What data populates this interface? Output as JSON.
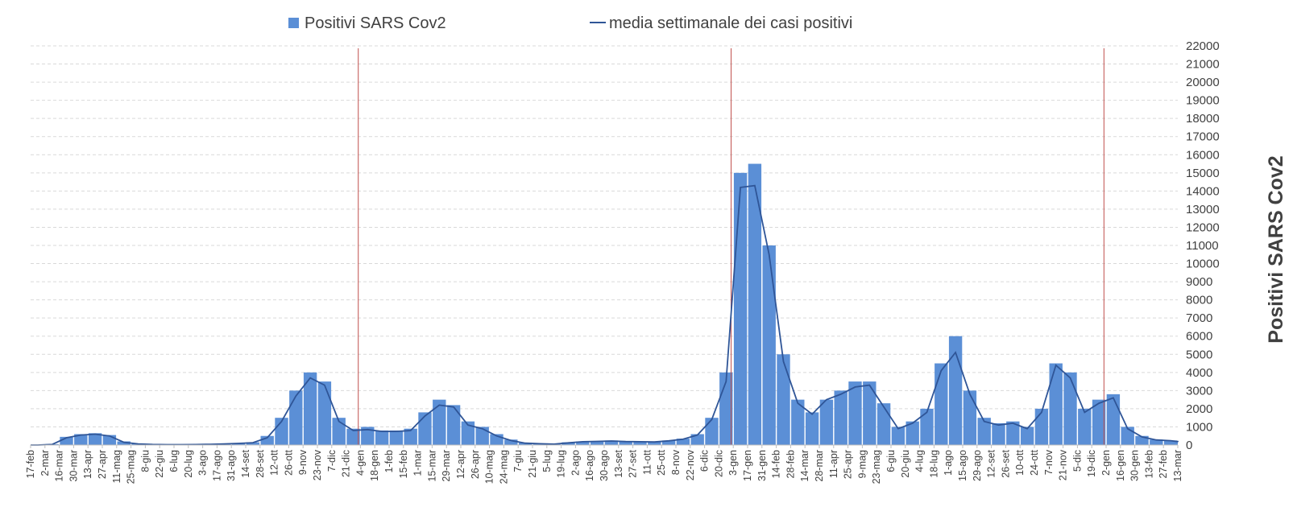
{
  "chart_data": {
    "type": "bar",
    "title": "",
    "xlabel": "",
    "ylabel": "Positivi SARS Cov2",
    "ylim": [
      0,
      22000
    ],
    "y_ticks": [
      0,
      1000,
      2000,
      3000,
      4000,
      5000,
      6000,
      7000,
      8000,
      9000,
      10000,
      11000,
      12000,
      13000,
      14000,
      15000,
      16000,
      17000,
      18000,
      19000,
      20000,
      21000,
      22000
    ],
    "grid": true,
    "legend_position": "top",
    "x_tick_labels": [
      "17-feb",
      "2-mar",
      "16-mar",
      "30-mar",
      "13-apr",
      "27-apr",
      "11-mag",
      "25-mag",
      "8-giu",
      "22-giu",
      "6-lug",
      "20-lug",
      "3-ago",
      "17-ago",
      "31-ago",
      "14-set",
      "28-set",
      "12-ott",
      "26-ott",
      "9-nov",
      "23-nov",
      "7-dic",
      "21-dic",
      "4-gen",
      "18-gen",
      "1-feb",
      "15-feb",
      "1-mar",
      "15-mar",
      "29-mar",
      "12-apr",
      "26-apr",
      "10-mag",
      "24-mag",
      "7-giu",
      "21-giu",
      "5-lug",
      "19-lug",
      "2-ago",
      "16-ago",
      "30-ago",
      "13-set",
      "27-set",
      "11-ott",
      "25-ott",
      "8-nov",
      "22-nov",
      "6-dic",
      "20-dic",
      "3-gen",
      "17-gen",
      "31-gen",
      "14-feb",
      "28-feb",
      "14-mar",
      "28-mar",
      "11-apr",
      "25-apr",
      "9-mag",
      "23-mag",
      "6-giu",
      "20-giu",
      "4-lug",
      "18-lug",
      "1-ago",
      "15-ago",
      "29-ago",
      "12-set",
      "26-set",
      "10-ott",
      "24-ott",
      "7-nov",
      "21-nov",
      "5-dic",
      "19-dic",
      "2-gen",
      "16-gen",
      "30-gen",
      "13-feb",
      "27-feb",
      "13-mar"
    ],
    "vertical_markers": [
      "4-gen",
      "3-gen",
      "2-gen"
    ],
    "series": [
      {
        "name": "Positivi SARS Cov2",
        "kind": "bar",
        "color": "#5b8fd6",
        "weekly_values": [
          0,
          50,
          450,
          600,
          650,
          550,
          200,
          80,
          40,
          30,
          30,
          40,
          50,
          80,
          100,
          150,
          500,
          1500,
          3000,
          4000,
          3500,
          1500,
          900,
          1000,
          800,
          800,
          900,
          1800,
          2500,
          2200,
          1300,
          1000,
          600,
          300,
          120,
          80,
          60,
          150,
          200,
          220,
          250,
          200,
          200,
          180,
          250,
          350,
          600,
          1500,
          4000,
          15000,
          15500,
          11000,
          5000,
          2500,
          1800,
          2500,
          3000,
          3500,
          3500,
          2300,
          1000,
          1300,
          2000,
          4500,
          6000,
          3000,
          1500,
          1200,
          1300,
          1000,
          2000,
          4500,
          4000,
          2000,
          2500,
          2800,
          1000,
          500,
          300,
          250,
          200,
          200,
          180,
          170
        ]
      },
      {
        "name": "media settimanale dei casi positivi",
        "kind": "line",
        "color": "#2f5597",
        "weekly_values": [
          0,
          30,
          400,
          550,
          600,
          500,
          150,
          60,
          30,
          20,
          20,
          25,
          40,
          60,
          90,
          130,
          400,
          1300,
          2700,
          3700,
          3300,
          1300,
          800,
          850,
          750,
          750,
          800,
          1600,
          2200,
          2100,
          1100,
          900,
          500,
          250,
          100,
          70,
          50,
          120,
          180,
          200,
          220,
          190,
          180,
          170,
          230,
          320,
          550,
          1400,
          3500,
          14200,
          14300,
          10500,
          4600,
          2300,
          1700,
          2500,
          2800,
          3200,
          3300,
          2100,
          900,
          1200,
          1800,
          4100,
          5100,
          2800,
          1300,
          1100,
          1200,
          900,
          1800,
          4400,
          3700,
          1800,
          2300,
          2600,
          900,
          450,
          280,
          240,
          190,
          180,
          170,
          160
        ]
      }
    ]
  }
}
